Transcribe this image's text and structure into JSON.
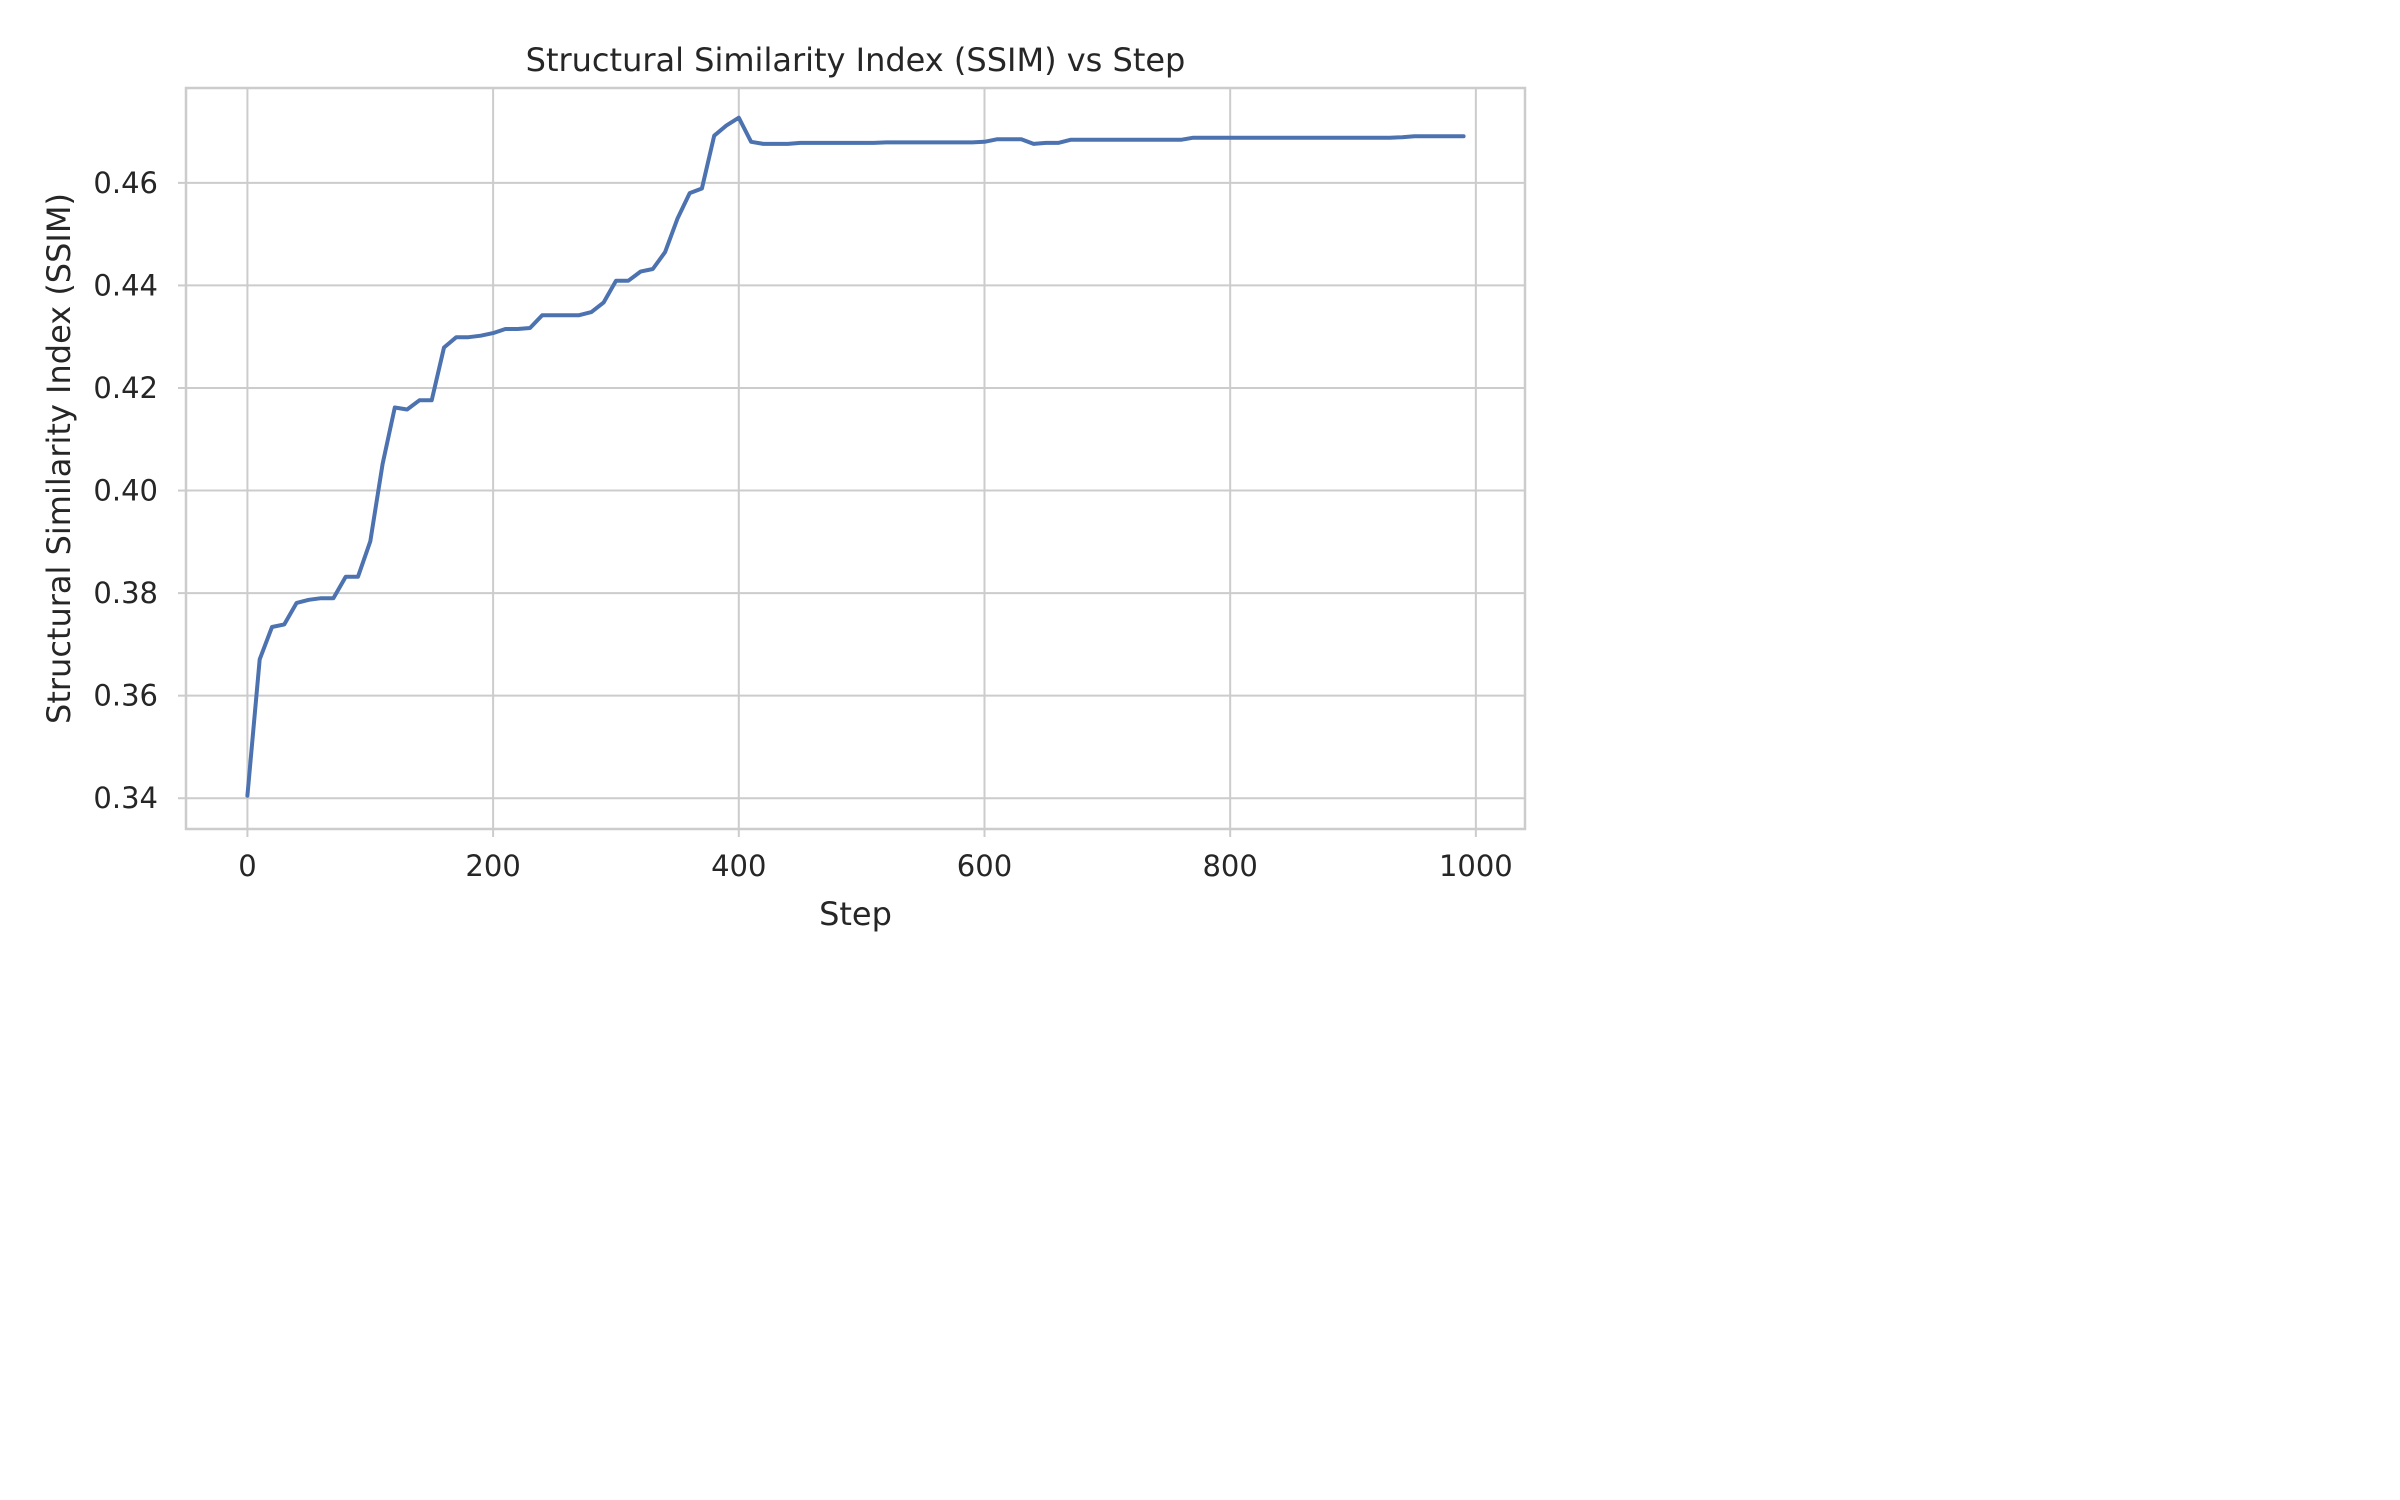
{
  "chart_data": {
    "type": "line",
    "title": "Structural Similarity Index (SSIM) vs Step",
    "xlabel": "Step",
    "ylabel": "Structural Similarity Index (SSIM)",
    "xlim": [
      -50,
      1040
    ],
    "ylim": [
      0.334,
      0.4785
    ],
    "xticks": [
      0,
      200,
      400,
      600,
      800,
      1000
    ],
    "xtick_labels": [
      "0",
      "200",
      "400",
      "600",
      "800",
      "1000"
    ],
    "yticks": [
      0.34,
      0.36,
      0.38,
      0.4,
      0.42,
      0.44,
      0.46
    ],
    "ytick_labels": [
      "0.34",
      "0.36",
      "0.38",
      "0.40",
      "0.42",
      "0.44",
      "0.46"
    ],
    "grid": true,
    "legend": "none",
    "line_color": "#4c72b0",
    "series": [
      {
        "x": [
          0,
          10,
          20,
          30,
          40,
          50,
          60,
          70,
          80,
          90,
          100,
          110,
          120,
          130,
          140,
          150,
          160,
          170,
          180,
          190,
          200,
          210,
          220,
          230,
          240,
          250,
          260,
          270,
          280,
          290,
          300,
          310,
          320,
          330,
          340,
          350,
          360,
          370,
          380,
          390,
          400,
          410,
          420,
          430,
          440,
          450,
          460,
          470,
          480,
          490,
          500,
          510,
          520,
          530,
          540,
          550,
          560,
          570,
          580,
          590,
          600,
          610,
          620,
          630,
          640,
          650,
          660,
          670,
          680,
          690,
          700,
          710,
          720,
          730,
          740,
          750,
          760,
          770,
          780,
          790,
          800,
          810,
          820,
          830,
          840,
          850,
          860,
          870,
          880,
          890,
          900,
          910,
          920,
          930,
          940,
          950,
          960,
          970,
          980,
          990
        ],
        "y": [
          0.3405,
          0.3671,
          0.3734,
          0.3739,
          0.3781,
          0.3787,
          0.379,
          0.379,
          0.3832,
          0.3832,
          0.3901,
          0.4052,
          0.4162,
          0.4158,
          0.4176,
          0.4176,
          0.4279,
          0.4299,
          0.4299,
          0.4302,
          0.4307,
          0.4315,
          0.4315,
          0.4317,
          0.4342,
          0.4342,
          0.4342,
          0.4342,
          0.4348,
          0.4367,
          0.4409,
          0.4409,
          0.4427,
          0.4432,
          0.4465,
          0.453,
          0.458,
          0.4589,
          0.4692,
          0.4712,
          0.4727,
          0.468,
          0.4676,
          0.4676,
          0.4676,
          0.4678,
          0.4678,
          0.4678,
          0.4678,
          0.4678,
          0.4678,
          0.4678,
          0.4679,
          0.4679,
          0.4679,
          0.4679,
          0.4679,
          0.4679,
          0.4679,
          0.4679,
          0.468,
          0.4685,
          0.4685,
          0.4685,
          0.4676,
          0.4678,
          0.4678,
          0.4684,
          0.4684,
          0.4684,
          0.4684,
          0.4684,
          0.4684,
          0.4684,
          0.4684,
          0.4684,
          0.4684,
          0.4688,
          0.4688,
          0.4688,
          0.4688,
          0.4688,
          0.4688,
          0.4688,
          0.4688,
          0.4688,
          0.4688,
          0.4688,
          0.4688,
          0.4688,
          0.4688,
          0.4688,
          0.4688,
          0.4688,
          0.4689,
          0.4691,
          0.4691,
          0.4691,
          0.4691,
          0.4691
        ]
      }
    ]
  }
}
